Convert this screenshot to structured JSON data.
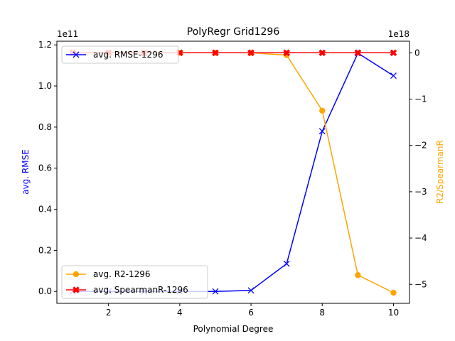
{
  "chart_data": {
    "type": "line",
    "title": "PolyRegr Grid1296",
    "xlabel": "Polynomial Degree",
    "ylabel_left": "avg. RMSE",
    "ylabel_right": "R2/SpearmanR",
    "left_offset_text": "1e11",
    "right_offset_text": "1e18",
    "x": [
      1,
      2,
      3,
      4,
      5,
      6,
      7,
      8,
      9,
      10
    ],
    "xlim": [
      0.55,
      10.45
    ],
    "ylim_left": [
      -0.058,
      1.218
    ],
    "ylim_right": [
      -5.41,
      0.25
    ],
    "x_ticks": [
      2,
      4,
      6,
      8,
      10
    ],
    "left_ticks": [
      0.0,
      0.2,
      0.4,
      0.6,
      0.8,
      1.0,
      1.2
    ],
    "right_ticks": [
      -5,
      -4,
      -3,
      -2,
      -1,
      0
    ],
    "grid": false,
    "series": [
      {
        "name": "avg. RMSE-1296",
        "axis": "left",
        "color": "#0000ff",
        "marker": "x",
        "values": [
          0.0,
          0.0,
          0.0,
          0.0,
          0.0,
          0.005,
          0.135,
          0.78,
          1.16,
          1.05
        ]
      },
      {
        "name": "avg. R2-1296",
        "axis": "right",
        "color": "#ffa500",
        "marker": "circle",
        "values": [
          0.0,
          0.0,
          0.0,
          0.0,
          0.0,
          0.0,
          -0.05,
          -1.25,
          -4.8,
          -5.18
        ]
      },
      {
        "name": "avg. SpearmanR-1296",
        "axis": "right",
        "color": "#ff0000",
        "marker": "filled-x",
        "values": [
          0.0,
          0.0,
          0.0,
          0.0,
          0.0,
          0.0,
          0.0,
          0.0,
          0.0,
          0.0
        ]
      }
    ],
    "legends": [
      {
        "placement": "upper-left",
        "entries": [
          "avg. RMSE-1296"
        ]
      },
      {
        "placement": "lower-left",
        "entries": [
          "avg. R2-1296",
          "avg. SpearmanR-1296"
        ]
      }
    ]
  }
}
